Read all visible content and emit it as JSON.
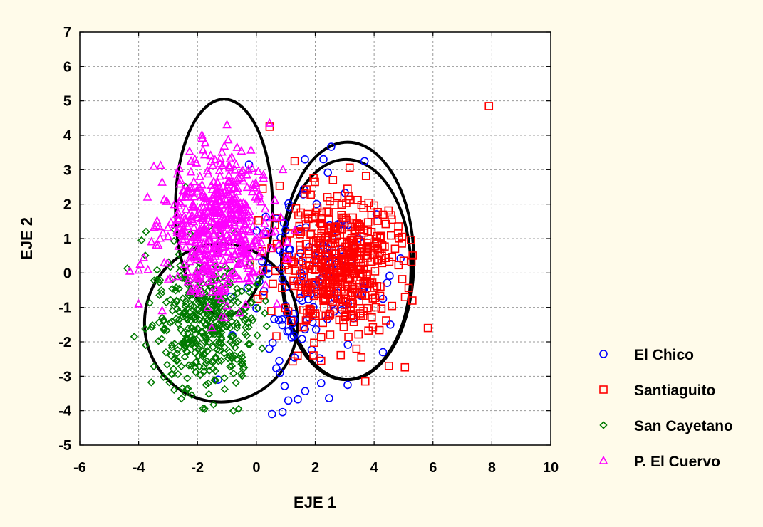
{
  "chart_data": {
    "type": "scatter",
    "title": "",
    "xlabel": "EJE 1",
    "ylabel": "EJE 2",
    "xlim": [
      -6,
      10
    ],
    "ylim": [
      -5,
      7
    ],
    "xticks": [
      "-6",
      "-4",
      "-2",
      "0",
      "2",
      "4",
      "6",
      "8",
      "10"
    ],
    "yticks": [
      "7",
      "6",
      "5",
      "4",
      "3",
      "2",
      "1",
      "0",
      "-1",
      "-2",
      "-3",
      "-4",
      "-5"
    ],
    "grid": true,
    "legend_position": "bottom-right",
    "series": [
      {
        "name": "El Chico",
        "marker": "circle",
        "color": "#0000ff",
        "cloud": {
          "cx": 1.9,
          "cy": -0.3,
          "sx": 1.1,
          "sy": 1.55,
          "n": 130,
          "seed": 11
        },
        "points": [
          [
            -0.25,
            3.15
          ],
          [
            1.65,
            3.3
          ],
          [
            2.2,
            -3.2
          ],
          [
            3.1,
            -3.25
          ],
          [
            4.3,
            -2.3
          ],
          [
            4.55,
            -1.5
          ],
          [
            4.3,
            -0.75
          ],
          [
            0.8,
            -2.9
          ],
          [
            -1.3,
            -3.1
          ]
        ]
      },
      {
        "name": "Santiaguito",
        "marker": "square",
        "color": "#ff0000",
        "cloud": {
          "cx": 2.75,
          "cy": 0.35,
          "sx": 1.0,
          "sy": 1.0,
          "n": 470,
          "seed": 23
        },
        "points": [
          [
            7.9,
            4.85
          ],
          [
            0.45,
            4.25
          ],
          [
            1.3,
            3.25
          ],
          [
            2.6,
            2.7
          ],
          [
            4.5,
            -2.7
          ],
          [
            3.7,
            -3.15
          ],
          [
            5.3,
            -0.8
          ],
          [
            4.95,
            1.05
          ],
          [
            4.6,
            1.55
          ],
          [
            2.2,
            -2.55
          ],
          [
            1.4,
            -2.4
          ],
          [
            3.4,
            -2.2
          ]
        ]
      },
      {
        "name": "San Cayetano",
        "marker": "diamond",
        "color": "#007a00",
        "cloud": {
          "cx": -1.75,
          "cy": -1.3,
          "sx": 0.85,
          "sy": 1.0,
          "n": 420,
          "seed": 37
        },
        "points": [
          [
            -4.15,
            -1.85
          ],
          [
            -3.9,
            0.95
          ],
          [
            -3.75,
            1.2
          ],
          [
            -2.55,
            -3.65
          ],
          [
            -1.75,
            -3.95
          ],
          [
            -0.6,
            -3.95
          ],
          [
            0.35,
            -1.55
          ],
          [
            -2.4,
            2.5
          ]
        ]
      },
      {
        "name": "P. El Cuervo",
        "marker": "triangle",
        "color": "#ff00ff",
        "cloud": {
          "cx": -1.3,
          "cy": 1.35,
          "sx": 0.95,
          "sy": 0.95,
          "n": 560,
          "seed": 53
        },
        "points": [
          [
            -4.3,
            0.05
          ],
          [
            -3.95,
            0.25
          ],
          [
            -3.7,
            2.2
          ],
          [
            -1.85,
            4.0
          ],
          [
            -1.0,
            4.3
          ],
          [
            0.45,
            4.35
          ],
          [
            -4.0,
            -0.9
          ],
          [
            -3.2,
            -1.1
          ],
          [
            0.9,
            3.0
          ]
        ]
      }
    ],
    "ellipses": [
      {
        "cx": -1.1,
        "cy": 1.9,
        "rx": 1.65,
        "ry": 3.15,
        "rot": 0
      },
      {
        "cx": -1.2,
        "cy": -1.45,
        "rx": 2.6,
        "ry": 2.3,
        "rot": 0
      },
      {
        "cx": 3.1,
        "cy": 0.35,
        "rx": 2.25,
        "ry": 3.45,
        "rot": 0
      },
      {
        "cx": 3.05,
        "cy": 0.1,
        "rx": 2.2,
        "ry": 3.2,
        "rot": 0
      }
    ]
  }
}
